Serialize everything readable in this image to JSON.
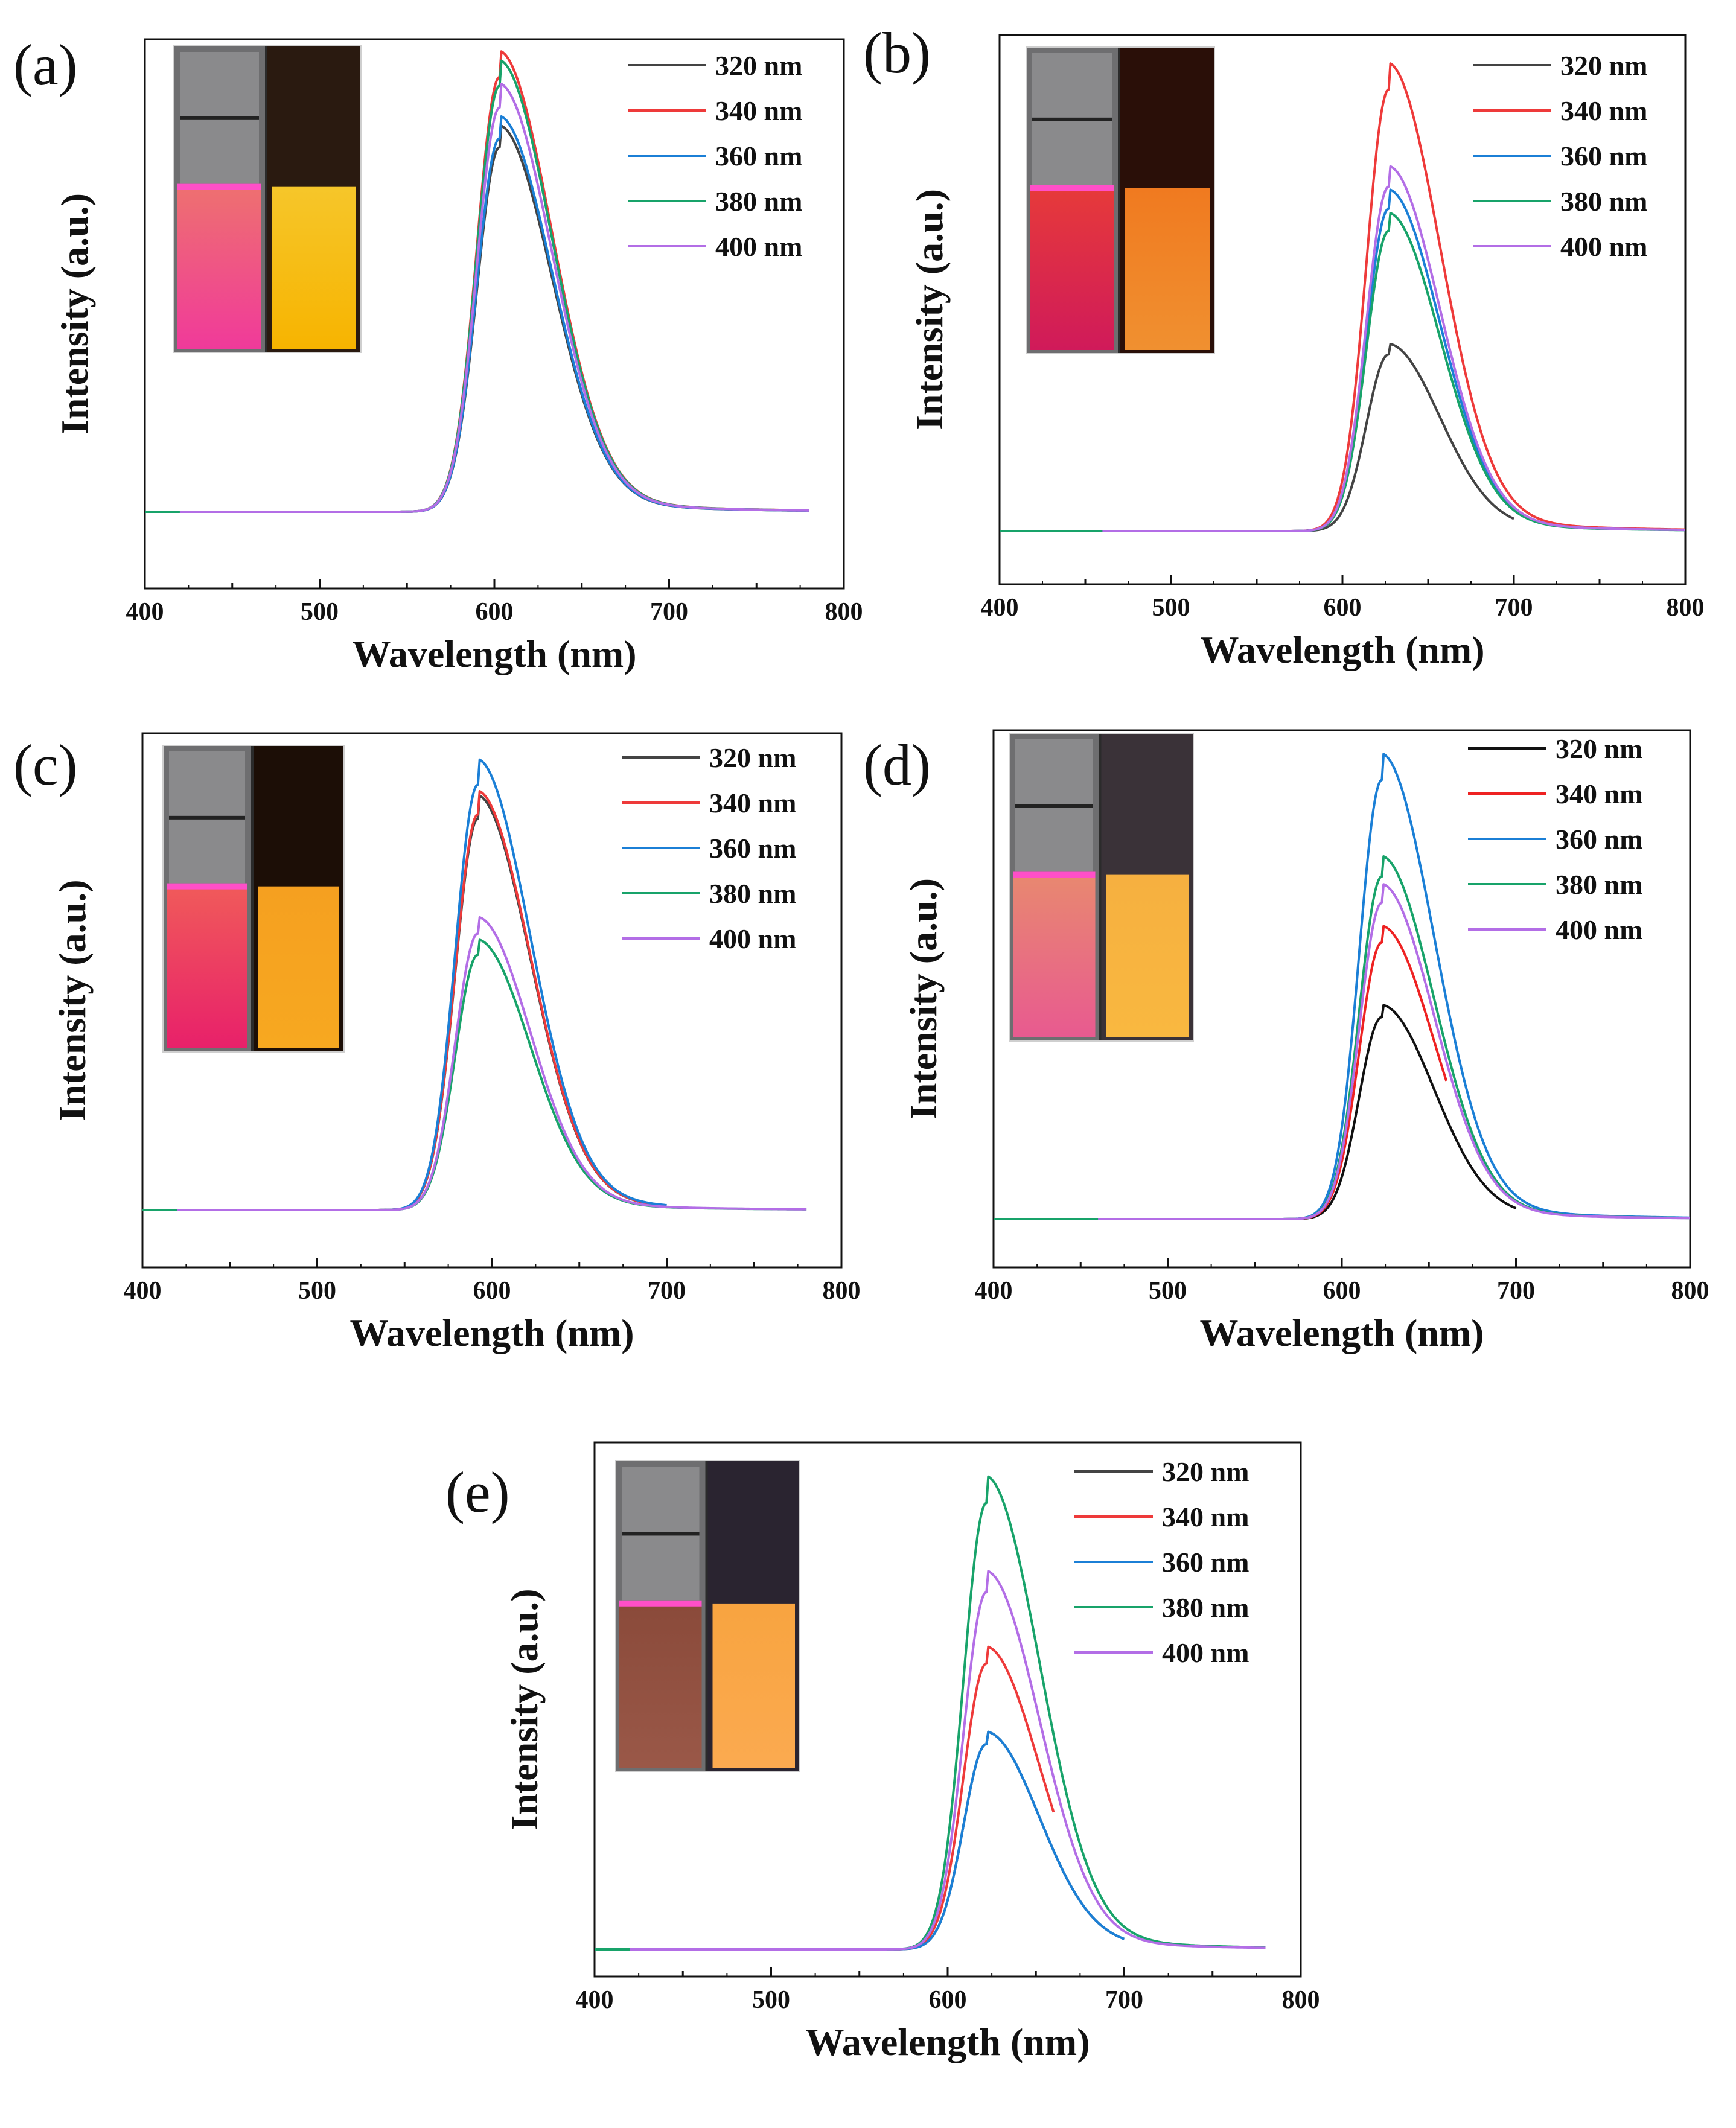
{
  "chart_data": [
    {
      "panel": "(a)",
      "type": "line",
      "xlabel": "Wavelength (nm)",
      "ylabel": "Intensity (a.u.)",
      "xlim": [
        400,
        800
      ],
      "x_ticks": [
        400,
        500,
        600,
        700,
        800
      ],
      "y_ticks_shown": false,
      "legend_placement": "top-right",
      "inset_image": "photo of two cuvettes (pink and yellow luminescence)",
      "series": [
        {
          "name": "320 nm",
          "color": "#444444",
          "peak_x": 603,
          "peak_y": 0.83,
          "x_range": [
            400,
            780
          ]
        },
        {
          "name": "340 nm",
          "color": "#ee3a3a",
          "peak_x": 603,
          "peak_y": 0.99,
          "x_range": [
            400,
            780
          ]
        },
        {
          "name": "360 nm",
          "color": "#1b7fd6",
          "peak_x": 603,
          "peak_y": 0.85,
          "x_range": [
            400,
            780
          ]
        },
        {
          "name": "380 nm",
          "color": "#18a36a",
          "peak_x": 603,
          "peak_y": 0.97,
          "x_range": [
            400,
            780
          ]
        },
        {
          "name": "400 nm",
          "color": "#b36ee6",
          "peak_x": 603,
          "peak_y": 0.92,
          "x_range": [
            420,
            780
          ]
        }
      ]
    },
    {
      "panel": "(b)",
      "type": "line",
      "xlabel": "Wavelength (nm)",
      "ylabel": "Intensity (a.u.)",
      "xlim": [
        400,
        800
      ],
      "x_ticks": [
        400,
        500,
        600,
        700,
        800
      ],
      "y_ticks_shown": false,
      "legend_placement": "top-right",
      "inset_image": "photo of two cuvettes (red and orange luminescence)",
      "series": [
        {
          "name": "320 nm",
          "color": "#444444",
          "peak_x": 627,
          "peak_y": 0.4,
          "x_range": [
            400,
            700
          ]
        },
        {
          "name": "340 nm",
          "color": "#ee3a3a",
          "peak_x": 627,
          "peak_y": 1.0,
          "x_range": [
            400,
            800
          ]
        },
        {
          "name": "360 nm",
          "color": "#1b7fd6",
          "peak_x": 627,
          "peak_y": 0.73,
          "x_range": [
            400,
            800
          ]
        },
        {
          "name": "380 nm",
          "color": "#18a36a",
          "peak_x": 627,
          "peak_y": 0.68,
          "x_range": [
            400,
            800
          ]
        },
        {
          "name": "400 nm",
          "color": "#b36ee6",
          "peak_x": 627,
          "peak_y": 0.78,
          "x_range": [
            460,
            800
          ]
        }
      ]
    },
    {
      "panel": "(c)",
      "type": "line",
      "xlabel": "Wavelength (nm)",
      "ylabel": "Intensity (a.u.)",
      "xlim": [
        400,
        800
      ],
      "x_ticks": [
        400,
        500,
        600,
        700,
        800
      ],
      "y_ticks_shown": false,
      "legend_placement": "top-right",
      "inset_image": "photo of two cuvettes (red and orange luminescence)",
      "series": [
        {
          "name": "320 nm",
          "color": "#444444",
          "peak_x": 592,
          "peak_y": 0.92,
          "x_range": [
            400,
            700
          ]
        },
        {
          "name": "340 nm",
          "color": "#ee3a3a",
          "peak_x": 592,
          "peak_y": 0.93,
          "x_range": [
            400,
            700
          ]
        },
        {
          "name": "360 nm",
          "color": "#1b7fd6",
          "peak_x": 592,
          "peak_y": 1.0,
          "x_range": [
            400,
            700
          ]
        },
        {
          "name": "380 nm",
          "color": "#18a36a",
          "peak_x": 592,
          "peak_y": 0.6,
          "x_range": [
            400,
            780
          ]
        },
        {
          "name": "400 nm",
          "color": "#b36ee6",
          "peak_x": 592,
          "peak_y": 0.65,
          "x_range": [
            420,
            780
          ]
        }
      ]
    },
    {
      "panel": "(d)",
      "type": "line",
      "xlabel": "Wavelength (nm)",
      "ylabel": "Intensity (a.u.)",
      "xlim": [
        400,
        800
      ],
      "x_ticks": [
        400,
        500,
        600,
        700,
        800
      ],
      "y_ticks_shown": false,
      "legend_placement": "top-right",
      "inset_image": "photo of two cuvettes (pink and orange luminescence)",
      "series": [
        {
          "name": "320 nm",
          "color": "#111111",
          "peak_x": 623,
          "peak_y": 0.46,
          "x_range": [
            400,
            700
          ]
        },
        {
          "name": "340 nm",
          "color": "#ee2222",
          "peak_x": 623,
          "peak_y": 0.63,
          "x_range": [
            400,
            660
          ]
        },
        {
          "name": "360 nm",
          "color": "#1b7fd6",
          "peak_x": 623,
          "peak_y": 1.0,
          "x_range": [
            400,
            800
          ]
        },
        {
          "name": "380 nm",
          "color": "#18a36a",
          "peak_x": 623,
          "peak_y": 0.78,
          "x_range": [
            400,
            800
          ]
        },
        {
          "name": "400 nm",
          "color": "#b36ee6",
          "peak_x": 623,
          "peak_y": 0.72,
          "x_range": [
            460,
            800
          ]
        }
      ]
    },
    {
      "panel": "(e)",
      "type": "line",
      "xlabel": "Wavelength (nm)",
      "ylabel": "Intensity (a.u.)",
      "xlim": [
        400,
        800
      ],
      "x_ticks": [
        400,
        500,
        600,
        700,
        800
      ],
      "y_ticks_shown": false,
      "legend_placement": "top-right",
      "inset_image": "photo of two cuvettes (brown and orange luminescence)",
      "series": [
        {
          "name": "320 nm",
          "color": "#444444",
          "peak_x": 622,
          "peak_y": 0.46,
          "x_range": [
            400,
            700
          ]
        },
        {
          "name": "340 nm",
          "color": "#ee3a3a",
          "peak_x": 622,
          "peak_y": 0.64,
          "x_range": [
            400,
            660
          ]
        },
        {
          "name": "360 nm",
          "color": "#1b7fd6",
          "peak_x": 622,
          "peak_y": 0.46,
          "x_range": [
            400,
            700
          ]
        },
        {
          "name": "380 nm",
          "color": "#18a36a",
          "peak_x": 622,
          "peak_y": 1.0,
          "x_range": [
            400,
            780
          ]
        },
        {
          "name": "400 nm",
          "color": "#b36ee6",
          "peak_x": 622,
          "peak_y": 0.8,
          "x_range": [
            420,
            780
          ]
        }
      ]
    }
  ]
}
